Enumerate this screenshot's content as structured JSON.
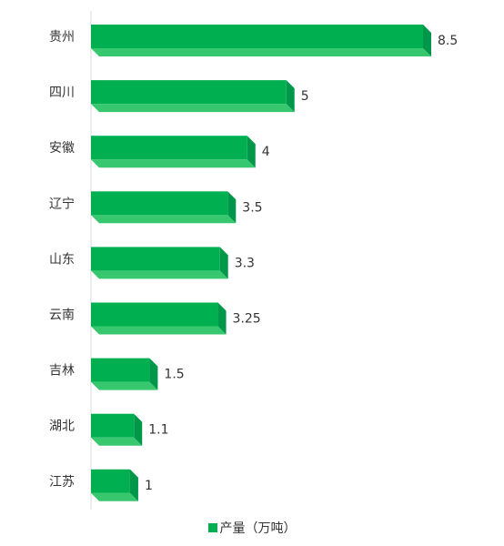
{
  "chart_data": {
    "type": "bar",
    "orientation": "horizontal",
    "style": "3d",
    "categories": [
      "贵州",
      "四川",
      "安徽",
      "辽宁",
      "山东",
      "云南",
      "吉林",
      "湖北",
      "江苏"
    ],
    "series": [
      {
        "name": "产量（万吨）",
        "values": [
          8.5,
          5,
          4,
          3.5,
          3.3,
          3.25,
          1.5,
          1.1,
          1
        ]
      }
    ],
    "data_labels": [
      "8.5",
      "5",
      "4",
      "3.5",
      "3.3",
      "3.25",
      "1.5",
      "1.1",
      "1"
    ],
    "xlim": [
      0,
      9
    ],
    "grid": false,
    "legend_position": "bottom",
    "colors": {
      "bar_front": "#00b050",
      "bar_side": "#00974a",
      "bar_bottom": "#37c76e",
      "axis": "#d9d9d9"
    }
  },
  "legend": {
    "label": "产量（万吨）"
  }
}
